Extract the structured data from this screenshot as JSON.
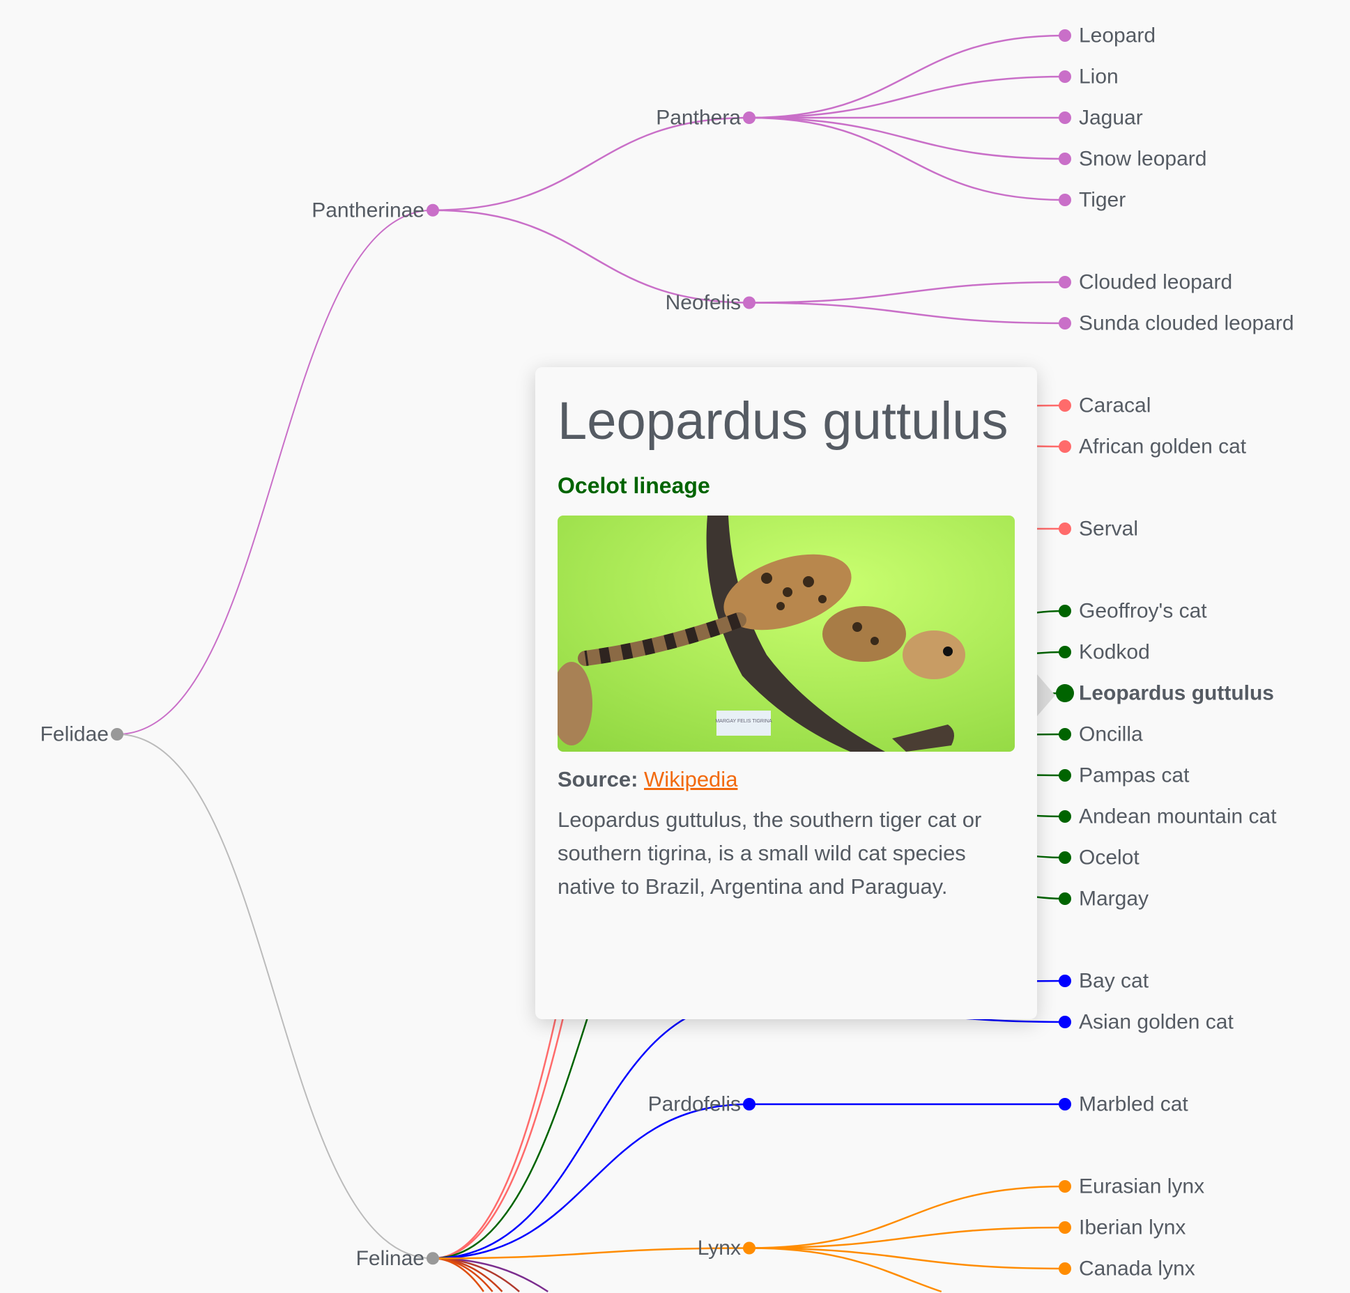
{
  "colors": {
    "root": "#999999",
    "Pantherinae": "#c96fc8",
    "caracal": "#ff6b6b",
    "ocelot": "#006400",
    "baycat": "#0000ff",
    "lynx": "#ff8c00",
    "offscreen_branch_colors": [
      "#7b2d8e",
      "#b03a2e",
      "#c8401a",
      "#d9480f",
      "#e0500f"
    ]
  },
  "tree": {
    "name": "Felidae",
    "children": [
      {
        "name": "Pantherinae",
        "children": [
          {
            "name": "Panthera",
            "color": "#c96fc8",
            "children": [
              "Leopard",
              "Lion",
              "Jaguar",
              "Snow leopard",
              "Tiger"
            ]
          },
          {
            "name": "Neofelis",
            "color": "#c96fc8",
            "children": [
              "Clouded leopard",
              "Sunda clouded leopard"
            ]
          }
        ]
      },
      {
        "name": "Felinae",
        "children": [
          {
            "name": "",
            "color": "#ff6b6b",
            "children": [
              "Caracal",
              "African golden cat"
            ]
          },
          {
            "name": "",
            "color": "#ff6b6b",
            "children": [
              "Serval"
            ]
          },
          {
            "name": "",
            "color": "#006400",
            "children": [
              "Geoffroy's cat",
              "Kodkod",
              "Leopardus guttulus",
              "Oncilla",
              "Pampas cat",
              "Andean mountain cat",
              "Ocelot",
              "Margay"
            ]
          },
          {
            "name": "",
            "color": "#0000ff",
            "children": [
              "Bay cat",
              "Asian golden cat"
            ]
          },
          {
            "name": "Pardofelis",
            "color": "#0000ff",
            "children": [
              "Marbled cat"
            ]
          },
          {
            "name": "Lynx",
            "color": "#ff8c00",
            "children": [
              "Eurasian lynx",
              "Iberian lynx",
              "Canada lynx",
              ""
            ]
          }
        ]
      }
    ]
  },
  "selected": "Leopardus guttulus",
  "tooltip": {
    "title": "Leopardus guttulus",
    "subtitle": "Ocelot lineage",
    "subtitle_color": "#006400",
    "image_label": "MARGAY FELIS TIGRINA",
    "source_label": "Source:",
    "source_link": "Wikipedia",
    "description": "Leopardus guttulus, the southern tiger cat or southern tigrina, is a small wild cat species native to Brazil, Argentina and Paraguay."
  }
}
